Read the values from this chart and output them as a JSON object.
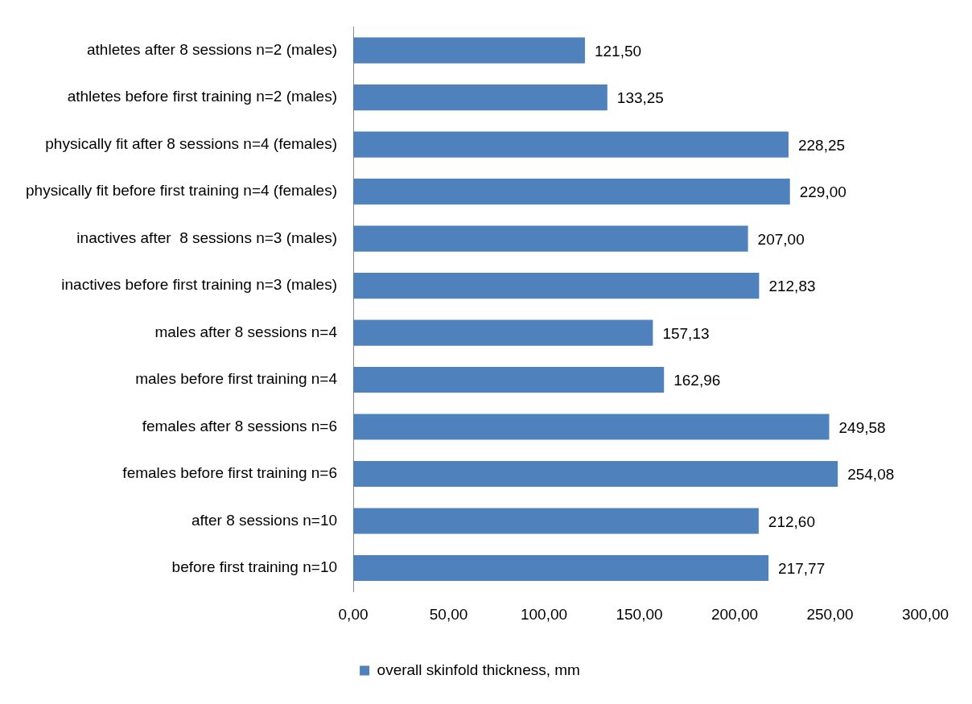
{
  "chart_data": {
    "type": "bar",
    "orientation": "horizontal",
    "categories": [
      "athletes after 8 sessions n=2 (males)",
      "athletes before first training n=2 (males)",
      "physically fit after 8 sessions n=4 (females)",
      "physically fit before first training n=4 (females)",
      "inactives after  8 sessions n=3 (males)",
      "inactives before first training n=3 (males)",
      "males after 8 sessions n=4",
      "males before first training n=4",
      "females after 8 sessions n=6",
      "females before first training n=6",
      "after 8 sessions n=10",
      "before first training n=10"
    ],
    "series": [
      {
        "name": "overall skinfold thickness, mm",
        "color": "#4f81bd",
        "values": [
          121.5,
          133.25,
          228.25,
          229,
          207,
          212.83,
          157.13,
          162.96,
          249.58,
          254.08,
          212.6,
          217.77
        ],
        "value_labels": [
          "121,50",
          "133,25",
          "228,25",
          "229,00",
          "207,00",
          "212,83",
          "157,13",
          "162,96",
          "249,58",
          "254,08",
          "212,60",
          "217,77"
        ]
      }
    ],
    "xlim": [
      0,
      300
    ],
    "xticks": [
      {
        "value": 0,
        "label": "0,00"
      },
      {
        "value": 50,
        "label": "50,00"
      },
      {
        "value": 100,
        "label": "100,00"
      },
      {
        "value": 150,
        "label": "150,00"
      },
      {
        "value": 200,
        "label": "200,00"
      },
      {
        "value": 250,
        "label": "250,00"
      },
      {
        "value": 300,
        "label": "300,00"
      }
    ],
    "grid": false,
    "legend": "bottom"
  }
}
